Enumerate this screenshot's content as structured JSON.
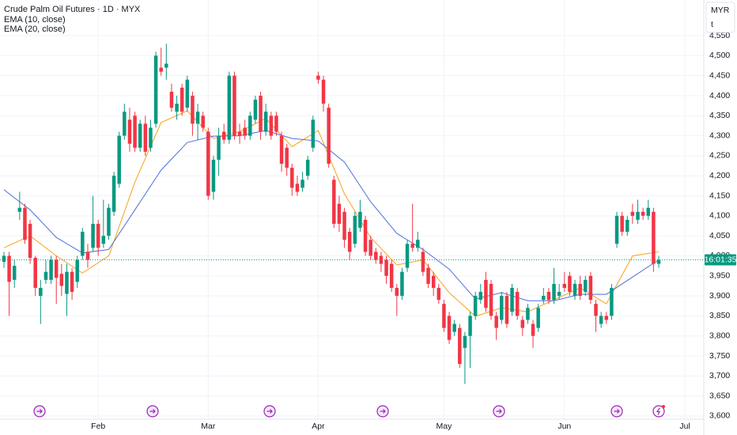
{
  "chart_data": {
    "type": "candlestick",
    "title": "Crude Palm Oil Futures · 1D · MYX",
    "currency": "MYR",
    "unit_menu": "t",
    "countdown": "16:01:35",
    "up_color": "#089981",
    "down_color": "#f23645",
    "open": [
      3985,
      4000,
      3940,
      4110,
      4120,
      4080,
      3995,
      3900,
      3940,
      3940,
      3990,
      3955,
      3905,
      3960,
      3935,
      4000,
      4010,
      4020,
      4080,
      4030,
      4050,
      4110,
      4180,
      4300,
      4340,
      4350,
      4270,
      4330,
      4270,
      4330,
      4470,
      4470,
      4410,
      4360,
      4420,
      4370,
      4400,
      4330,
      4350,
      4310,
      4160,
      4240,
      4310,
      4290,
      4450,
      4310,
      4320,
      4300,
      4340,
      4400,
      4310,
      4350,
      4350,
      4300,
      4270,
      4220,
      4180,
      4170,
      4200,
      4270,
      4450,
      4440,
      4370,
      4190,
      4130,
      4110,
      4060,
      4030,
      4070,
      4090,
      4040,
      4010,
      4000,
      3990,
      3980,
      3920,
      3900,
      3970,
      4030,
      4020,
      4010,
      3970,
      3950,
      3920,
      3880,
      3850,
      3810,
      3820,
      3770,
      3800,
      3850,
      3890,
      3940,
      3930,
      3850,
      3840,
      3900,
      3860,
      3910,
      3840,
      3840,
      3830,
      3820,
      3890,
      3910,
      3890,
      3900,
      3930,
      3950,
      3900,
      3930,
      3910,
      3950,
      3880,
      3830,
      3850,
      3850,
      4030,
      4100,
      4060,
      4110,
      4090,
      4110,
      4100,
      4110,
      3980
    ],
    "high": [
      4010,
      4010,
      3990,
      4160,
      4130,
      4090,
      4000,
      3940,
      3990,
      4000,
      4000,
      3980,
      3980,
      3970,
      4000,
      4070,
      4030,
      4150,
      4090,
      4140,
      4130,
      4210,
      4310,
      4380,
      4370,
      4360,
      4340,
      4350,
      4340,
      4510,
      4520,
      4530,
      4430,
      4400,
      4430,
      4450,
      4410,
      4380,
      4360,
      4320,
      4250,
      4320,
      4330,
      4460,
      4460,
      4330,
      4340,
      4360,
      4400,
      4410,
      4380,
      4360,
      4360,
      4310,
      4280,
      4230,
      4200,
      4210,
      4250,
      4350,
      4460,
      4450,
      4380,
      4200,
      4150,
      4120,
      4070,
      4110,
      4140,
      4100,
      4050,
      4020,
      4010,
      4000,
      3990,
      3930,
      3970,
      4040,
      4130,
      4060,
      4020,
      3980,
      3960,
      3930,
      3890,
      3860,
      3840,
      3830,
      3810,
      3860,
      3910,
      3930,
      3960,
      3940,
      3860,
      3910,
      3910,
      3930,
      3920,
      3850,
      3880,
      3840,
      3880,
      3920,
      3920,
      3970,
      3930,
      3960,
      3960,
      3940,
      3950,
      3950,
      3960,
      3890,
      3860,
      3860,
      3930,
      4110,
      4110,
      4100,
      4130,
      4140,
      4120,
      4140,
      4120,
      4000
    ],
    "low": [
      3970,
      3850,
      3920,
      4090,
      4030,
      3980,
      3900,
      3830,
      3930,
      3930,
      3880,
      3900,
      3850,
      3890,
      3920,
      3990,
      3970,
      4010,
      4000,
      4020,
      4040,
      4100,
      4170,
      4290,
      4260,
      4260,
      4260,
      4250,
      4260,
      4320,
      4450,
      4440,
      4360,
      4340,
      4350,
      4360,
      4300,
      4290,
      4310,
      4140,
      4140,
      4200,
      4280,
      4280,
      4290,
      4280,
      4290,
      4290,
      4330,
      4290,
      4300,
      4290,
      4300,
      4210,
      4200,
      4150,
      4150,
      4160,
      4190,
      4260,
      4430,
      4360,
      4220,
      4070,
      4060,
      4020,
      3990,
      4020,
      4060,
      4000,
      3990,
      3980,
      3960,
      3930,
      3910,
      3850,
      3890,
      3960,
      4010,
      4010,
      3950,
      3920,
      3900,
      3880,
      3810,
      3780,
      3800,
      3720,
      3680,
      3720,
      3840,
      3880,
      3860,
      3840,
      3790,
      3830,
      3820,
      3850,
      3840,
      3800,
      3830,
      3770,
      3810,
      3880,
      3880,
      3880,
      3890,
      3910,
      3900,
      3890,
      3890,
      3900,
      3880,
      3810,
      3820,
      3830,
      3840,
      4020,
      4050,
      4050,
      4080,
      4080,
      4090,
      4090,
      3960,
      3970
    ],
    "close": [
      4000,
      3935,
      3975,
      4120,
      4040,
      3995,
      3920,
      3920,
      3960,
      3990,
      3945,
      3925,
      3960,
      3910,
      3990,
      4060,
      3990,
      4080,
      4020,
      4050,
      4120,
      4200,
      4300,
      4360,
      4280,
      4270,
      4330,
      4260,
      4320,
      4500,
      4460,
      4480,
      4370,
      4380,
      4360,
      4440,
      4330,
      4360,
      4320,
      4150,
      4240,
      4300,
      4290,
      4450,
      4300,
      4300,
      4300,
      4350,
      4390,
      4310,
      4360,
      4300,
      4310,
      4230,
      4220,
      4170,
      4160,
      4190,
      4240,
      4340,
      4440,
      4380,
      4230,
      4080,
      4080,
      4040,
      4010,
      4100,
      4110,
      4010,
      4000,
      3990,
      3980,
      3950,
      3920,
      3900,
      3960,
      4030,
      4020,
      4040,
      3960,
      3930,
      3920,
      3890,
      3820,
      3790,
      3830,
      3730,
      3800,
      3850,
      3900,
      3910,
      3870,
      3850,
      3820,
      3900,
      3830,
      3920,
      3850,
      3820,
      3870,
      3800,
      3870,
      3900,
      3890,
      3930,
      3910,
      3920,
      3910,
      3930,
      3900,
      3940,
      3890,
      3850,
      3850,
      3840,
      3920,
      4100,
      4060,
      4090,
      4100,
      4110,
      4100,
      4120,
      3980,
      3990
    ],
    "series": [
      {
        "name": "EMA (10, close)",
        "color": "#f7a21b",
        "x": [
          0,
          5,
          10,
          15,
          20,
          25,
          30,
          35,
          40,
          45,
          50,
          55,
          60,
          65,
          70,
          75,
          80,
          85,
          90,
          95,
          100,
          105,
          110,
          115,
          120,
          125
        ],
        "values": [
          4020,
          4050,
          4000,
          3957,
          4000,
          4184,
          4333,
          4362,
          4293,
          4310,
          4343,
          4273,
          4313,
          4155,
          4046,
          3977,
          3990,
          3908,
          3849,
          3870,
          3860,
          3890,
          3920,
          3880,
          4000,
          4010
        ]
      },
      {
        "name": "EMA (20, close)",
        "color": "#4f6fd8",
        "x": [
          0,
          5,
          10,
          15,
          20,
          25,
          30,
          35,
          40,
          45,
          50,
          55,
          60,
          65,
          70,
          75,
          80,
          85,
          90,
          95,
          100,
          105,
          110,
          115,
          120,
          125
        ],
        "values": [
          4165,
          4115,
          4046,
          4007,
          4016,
          4115,
          4214,
          4283,
          4299,
          4300,
          4313,
          4293,
          4287,
          4234,
          4135,
          4056,
          4016,
          3967,
          3892,
          3908,
          3888,
          3888,
          3904,
          3904,
          3947,
          3990
        ]
      }
    ],
    "xlim": [
      -0.75,
      133.6
    ],
    "xticks": [
      {
        "value": 18,
        "label": "Feb"
      },
      {
        "value": 39,
        "label": "Mar"
      },
      {
        "value": 60,
        "label": "Apr"
      },
      {
        "value": 84,
        "label": "May"
      },
      {
        "value": 107,
        "label": "Jun"
      },
      {
        "value": 130,
        "label": "Jul"
      }
    ],
    "ylim": [
      3592,
      4639
    ],
    "yticks": [
      {
        "value": 3600,
        "label": "3,600"
      },
      {
        "value": 3650,
        "label": "3,650"
      },
      {
        "value": 3700,
        "label": "3,700"
      },
      {
        "value": 3750,
        "label": "3,750"
      },
      {
        "value": 3800,
        "label": "3,800"
      },
      {
        "value": 3850,
        "label": "3,850"
      },
      {
        "value": 3900,
        "label": "3,900"
      },
      {
        "value": 3950,
        "label": "3,950"
      },
      {
        "value": 4000,
        "label": "4,000"
      },
      {
        "value": 4050,
        "label": "4,050"
      },
      {
        "value": 4100,
        "label": "4,100"
      },
      {
        "value": 4150,
        "label": "4,150"
      },
      {
        "value": 4200,
        "label": "4,200"
      },
      {
        "value": 4250,
        "label": "4,250"
      },
      {
        "value": 4300,
        "label": "4,300"
      },
      {
        "value": 4350,
        "label": "4,350"
      },
      {
        "value": 4400,
        "label": "4,400"
      },
      {
        "value": 4450,
        "label": "4,450"
      },
      {
        "value": 4500,
        "label": "4,500"
      },
      {
        "value": 4550,
        "label": "4,550"
      }
    ],
    "grid": true
  }
}
